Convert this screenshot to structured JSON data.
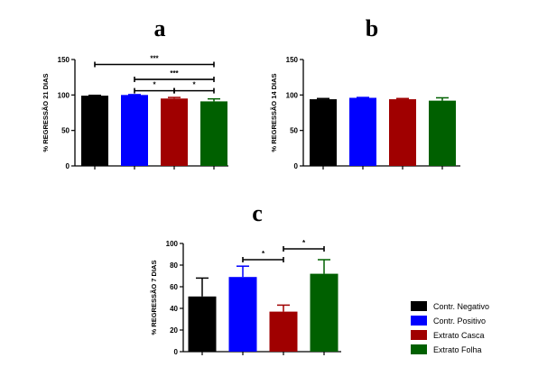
{
  "legend": [
    {
      "label": "Contr. Negativo",
      "color": "#000000"
    },
    {
      "label": "Contr. Positivo",
      "color": "#0000ff"
    },
    {
      "label": "Extrato Casca",
      "color": "#a00000"
    },
    {
      "label": "Extrato Folha",
      "color": "#006000"
    }
  ],
  "chart_data": [
    {
      "panel": "a",
      "type": "bar",
      "title": "",
      "ylabel": "% REGRESSÃO 21 DIAS",
      "xlabel": "",
      "ylim": [
        0,
        150
      ],
      "yticks": [
        "0",
        "50",
        "100",
        "150"
      ],
      "categories": [
        "Contr. Negativo",
        "Contr. Positivo",
        "Extrato Casca",
        "Extrato Folha"
      ],
      "values": [
        99,
        100,
        95,
        91
      ],
      "errors": [
        0.5,
        0.5,
        1.5,
        3.5
      ],
      "colors": [
        "#000000",
        "#0000ff",
        "#a00000",
        "#006000"
      ],
      "significance": [
        {
          "from": 0,
          "to": 3,
          "label": "***",
          "y": 143
        },
        {
          "from": 1,
          "to": 3,
          "label": "***",
          "y": 122
        },
        {
          "from": 1,
          "to": 2,
          "label": "*",
          "y": 106
        },
        {
          "from": 2,
          "to": 3,
          "label": "*",
          "y": 106
        }
      ]
    },
    {
      "panel": "b",
      "type": "bar",
      "title": "",
      "ylabel": "% REGRESSÃO 14 DIAS",
      "xlabel": "",
      "ylim": [
        0,
        150
      ],
      "yticks": [
        "0",
        "50",
        "100",
        "150"
      ],
      "categories": [
        "Contr. Negativo",
        "Contr. Positivo",
        "Extrato Casca",
        "Extrato Folha"
      ],
      "values": [
        94,
        96,
        94,
        92
      ],
      "errors": [
        1,
        0.5,
        1,
        4
      ],
      "colors": [
        "#000000",
        "#0000ff",
        "#a00000",
        "#006000"
      ],
      "significance": []
    },
    {
      "panel": "c",
      "type": "bar",
      "title": "",
      "ylabel": "% REGRESSÃO 7 DIAS",
      "xlabel": "",
      "ylim": [
        0,
        100
      ],
      "yticks": [
        "0",
        "20",
        "40",
        "60",
        "80",
        "100"
      ],
      "categories": [
        "Contr. Negativo",
        "Contr. Positivo",
        "Extrato Casca",
        "Extrato Folha"
      ],
      "values": [
        51,
        69,
        37,
        72
      ],
      "errors": [
        17,
        10,
        6,
        13
      ],
      "colors": [
        "#000000",
        "#0000ff",
        "#a00000",
        "#006000"
      ],
      "significance": [
        {
          "from": 1,
          "to": 2,
          "label": "*",
          "y": 85
        },
        {
          "from": 2,
          "to": 3,
          "label": "*",
          "y": 95
        }
      ]
    }
  ]
}
